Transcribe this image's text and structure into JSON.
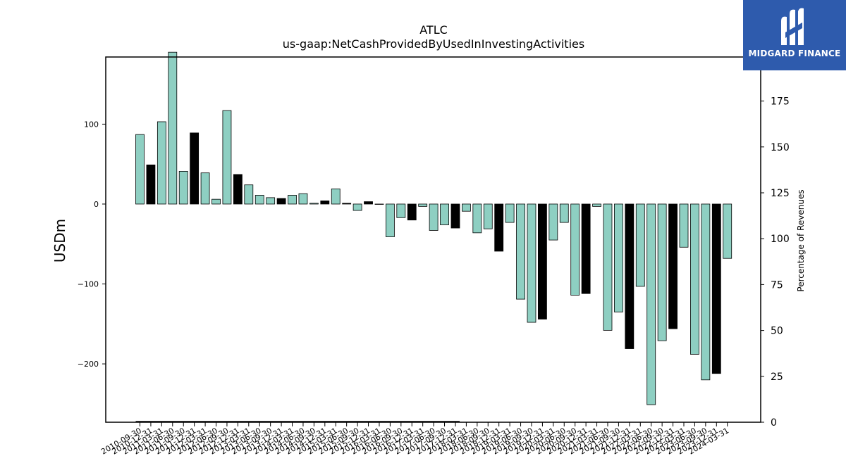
{
  "brand": {
    "name": "MIDGARD FINANCE",
    "logo_icon": "midgard-m-logo-icon",
    "background": "#2e5bad"
  },
  "colors": {
    "teal": "#8ecfc2",
    "black": "#000000"
  },
  "chart_data": {
    "type": "bar",
    "title": "ATLC",
    "subtitle": "us-gaap:NetCashProvidedByUsedInInvestingActivities",
    "ylabel": "USDm",
    "ylabel_right": "Percentage of Revenues",
    "ylim": [
      -273,
      184
    ],
    "ylim_right": [
      0,
      199
    ],
    "yticks": [
      -200,
      -100,
      0,
      100
    ],
    "yticks_right": [
      0,
      25,
      50,
      75,
      100,
      125,
      150,
      175
    ],
    "grid": false,
    "categories": [
      "2010-09-30",
      "2010-12-31",
      "2011-03-31",
      "2011-06-30",
      "2011-09-30",
      "2011-12-31",
      "2012-03-31",
      "2012-06-30",
      "2012-09-30",
      "2012-12-31",
      "2013-03-31",
      "2013-06-30",
      "2013-09-30",
      "2013-12-31",
      "2014-03-31",
      "2014-06-30",
      "2014-09-30",
      "2014-12-31",
      "2015-03-31",
      "2015-06-30",
      "2015-09-30",
      "2015-12-31",
      "2016-03-31",
      "2016-06-30",
      "2016-09-30",
      "2016-12-31",
      "2017-03-31",
      "2017-06-30",
      "2017-09-30",
      "2017-12-31",
      "2018-03-31",
      "2018-06-30",
      "2018-09-30",
      "2018-12-31",
      "2019-03-31",
      "2019-06-30",
      "2019-09-30",
      "2019-12-31",
      "2020-03-31",
      "2020-06-30",
      "2020-09-30",
      "2020-12-31",
      "2021-03-31",
      "2021-06-30",
      "2021-09-30",
      "2021-12-31",
      "2022-03-31",
      "2022-06-30",
      "2022-09-30",
      "2022-12-31",
      "2023-03-31",
      "2023-06-30",
      "2023-09-30",
      "2023-12-31",
      "2024-03-31"
    ],
    "values": [
      87,
      49,
      103,
      190,
      41,
      89,
      39,
      6,
      117,
      37,
      24,
      11,
      8,
      7,
      11,
      13,
      1,
      4,
      19,
      1,
      -8,
      3,
      0,
      -41,
      -17,
      -20,
      -3,
      -33,
      -26,
      -30,
      -9,
      -36,
      -31,
      -59,
      -23,
      -119,
      -148,
      -144,
      -45,
      -23,
      -114,
      -112,
      -3,
      -158,
      -135,
      -181,
      -103,
      -251,
      -171,
      -156,
      -54,
      -188,
      -220,
      -212,
      -68
    ],
    "bar_colors": [
      "teal",
      "black",
      "teal",
      "teal",
      "teal",
      "black",
      "teal",
      "teal",
      "teal",
      "black",
      "teal",
      "teal",
      "teal",
      "black",
      "teal",
      "teal",
      "teal",
      "black",
      "teal",
      "black",
      "teal",
      "black",
      "teal",
      "teal",
      "teal",
      "black",
      "teal",
      "teal",
      "teal",
      "black",
      "teal",
      "teal",
      "teal",
      "black",
      "teal",
      "teal",
      "teal",
      "black",
      "teal",
      "teal",
      "teal",
      "black",
      "teal",
      "teal",
      "teal",
      "black",
      "teal",
      "teal",
      "teal",
      "black",
      "teal",
      "teal",
      "teal",
      "black",
      "teal"
    ],
    "revenue_pct_line_end_index": 29
  }
}
